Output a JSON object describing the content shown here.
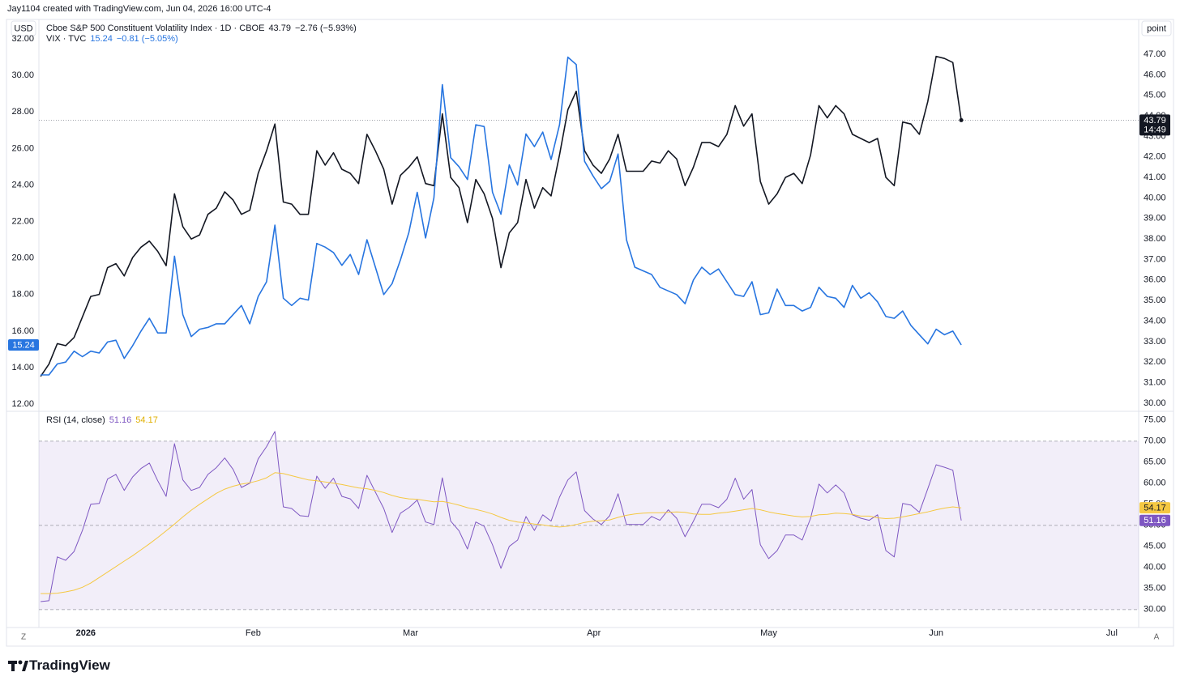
{
  "header": "Jay1104 created with TradingView.com, Jun 04, 2026 16:00 UTC-4",
  "currency": "USD",
  "scale_unit": "point",
  "logo": "TradingView",
  "buttons": [
    "Z",
    "A"
  ],
  "chart_data": [
    {
      "type": "line",
      "y_axis_side": "left",
      "countdown": "14:49",
      "xlim": [
        -0.2,
        131.2
      ],
      "xticks": [
        {
          "value": 5.4,
          "label": "2026"
        },
        {
          "value": 25.4,
          "label": "Feb"
        },
        {
          "value": 44.2,
          "label": "Mar"
        },
        {
          "value": 66.1,
          "label": "Apr"
        },
        {
          "value": 87.0,
          "label": "May"
        },
        {
          "value": 107.0,
          "label": "Jun"
        },
        {
          "value": 128.0,
          "label": "Jul"
        }
      ],
      "ylim": [
        11.65,
        32.27
      ],
      "yticks": [
        {
          "value": 12,
          "label": "12.00"
        },
        {
          "value": 14,
          "label": "14.00"
        },
        {
          "value": 16,
          "label": "16.00"
        },
        {
          "value": 18,
          "label": "18.00"
        },
        {
          "value": 20,
          "label": "20.00"
        },
        {
          "value": 22,
          "label": "22.00"
        },
        {
          "value": 24,
          "label": "24.00"
        },
        {
          "value": 26,
          "label": "26.00"
        },
        {
          "value": 28,
          "label": "28.00"
        },
        {
          "value": 30,
          "label": "30.00"
        },
        {
          "value": 32,
          "label": "32.00"
        }
      ],
      "y2lim": [
        29.64,
        47.99
      ],
      "y2ticks": [
        {
          "value": 30,
          "label": "30.00"
        },
        {
          "value": 31,
          "label": "31.00"
        },
        {
          "value": 32,
          "label": "32.00"
        },
        {
          "value": 33,
          "label": "33.00"
        },
        {
          "value": 34,
          "label": "34.00"
        },
        {
          "value": 35,
          "label": "35.00"
        },
        {
          "value": 36,
          "label": "36.00"
        },
        {
          "value": 37,
          "label": "37.00"
        },
        {
          "value": 38,
          "label": "38.00"
        },
        {
          "value": 39,
          "label": "39.00"
        },
        {
          "value": 40,
          "label": "40.00"
        },
        {
          "value": 41,
          "label": "41.00"
        },
        {
          "value": 42,
          "label": "42.00"
        },
        {
          "value": 43,
          "label": "43.00"
        },
        {
          "value": 44,
          "label": "44.00"
        },
        {
          "value": 45,
          "label": "45.00"
        },
        {
          "value": 46,
          "label": "46.00"
        },
        {
          "value": 47,
          "label": "47.00"
        }
      ],
      "series": [
        {
          "name": "Cboe S&P 500 Constituent Volatility Index · 1D · CBOE",
          "change": "−2.76 (−5.93%)",
          "color": "#131722",
          "axis": "y2",
          "price_line": true,
          "values": [
            31.3,
            31.9,
            32.9,
            32.8,
            33.2,
            34.2,
            35.2,
            35.3,
            36.6,
            36.8,
            36.2,
            37.1,
            37.6,
            37.9,
            37.4,
            36.7,
            40.2,
            38.6,
            38.0,
            38.2,
            39.2,
            39.5,
            40.3,
            39.9,
            39.2,
            39.4,
            41.2,
            42.3,
            43.6,
            39.8,
            39.7,
            39.2,
            39.2,
            42.3,
            41.6,
            42.2,
            41.4,
            41.2,
            40.7,
            43.1,
            42.3,
            41.4,
            39.7,
            41.1,
            41.5,
            42.0,
            40.7,
            40.6,
            44.1,
            41.0,
            40.5,
            38.8,
            40.9,
            40.2,
            39.0,
            36.6,
            38.3,
            38.8,
            40.9,
            39.5,
            40.5,
            40.1,
            42.1,
            44.3,
            45.2,
            42.3,
            41.6,
            41.2,
            41.9,
            43.1,
            41.3,
            41.3,
            41.3,
            41.8,
            41.7,
            42.3,
            41.9,
            40.6,
            41.5,
            42.7,
            42.7,
            42.5,
            43.1,
            44.5,
            43.5,
            44.1,
            40.8,
            39.7,
            40.2,
            41.0,
            41.2,
            40.7,
            42.1,
            44.5,
            43.9,
            44.5,
            44.1,
            43.1,
            42.9,
            42.7,
            42.9,
            41.0,
            40.6,
            43.7,
            43.6,
            43.1,
            44.7,
            46.9,
            46.8,
            46.6,
            43.79
          ]
        },
        {
          "name": "VIX · TVC",
          "change": "−0.81 (−5.05%)",
          "color": "#2775e0",
          "axis": "y",
          "values": [
            13.6,
            13.6,
            14.2,
            14.3,
            14.9,
            14.6,
            14.9,
            14.8,
            15.4,
            15.5,
            14.5,
            15.2,
            16.0,
            16.7,
            15.9,
            15.9,
            20.1,
            16.9,
            15.7,
            16.1,
            16.2,
            16.4,
            16.4,
            16.9,
            17.4,
            16.4,
            17.9,
            18.7,
            21.8,
            17.8,
            17.4,
            17.8,
            17.7,
            20.8,
            20.6,
            20.3,
            19.6,
            20.2,
            19.1,
            21.0,
            19.5,
            18.0,
            18.6,
            19.9,
            21.4,
            23.6,
            21.1,
            23.3,
            29.5,
            25.5,
            25.0,
            24.3,
            27.3,
            27.2,
            23.6,
            22.4,
            25.1,
            24.0,
            26.8,
            26.1,
            26.9,
            25.4,
            27.3,
            31.0,
            30.6,
            25.3,
            24.5,
            23.8,
            24.2,
            25.7,
            21.0,
            19.5,
            19.3,
            19.1,
            18.4,
            18.2,
            18.0,
            17.5,
            18.8,
            19.5,
            19.1,
            19.4,
            18.7,
            18.0,
            17.9,
            18.7,
            16.9,
            17.0,
            18.3,
            17.4,
            17.4,
            17.1,
            17.3,
            18.4,
            17.9,
            17.8,
            17.3,
            18.5,
            17.8,
            18.1,
            17.6,
            16.8,
            16.7,
            17.1,
            16.3,
            15.8,
            15.3,
            16.1,
            15.8,
            16.0,
            15.24
          ]
        }
      ]
    },
    {
      "type": "line",
      "y_axis_side": "right",
      "xlim": [
        -0.2,
        131.2
      ],
      "ylim": [
        26.7,
        76.7
      ],
      "yticks": [
        {
          "value": 30,
          "label": "30.00"
        },
        {
          "value": 35,
          "label": "35.00"
        },
        {
          "value": 40,
          "label": "40.00"
        },
        {
          "value": 45,
          "label": "45.00"
        },
        {
          "value": 50,
          "label": "50.00"
        },
        {
          "value": 55,
          "label": "55.00"
        },
        {
          "value": 60,
          "label": "60.00"
        },
        {
          "value": 65,
          "label": "65.00"
        },
        {
          "value": 70,
          "label": "70.00"
        },
        {
          "value": 75,
          "label": "75.00"
        }
      ],
      "bands": [
        30,
        50,
        70
      ],
      "band_color": "#7e57c2",
      "series": [
        {
          "name": "RSI (14, close)",
          "color": "#7e57c2",
          "axis": "y",
          "values": [
            31.9,
            32.1,
            42.5,
            41.7,
            43.8,
            48.8,
            55.0,
            55.2,
            61.0,
            62.1,
            58.3,
            61.5,
            63.5,
            64.8,
            60.6,
            56.9,
            69.4,
            60.8,
            58.3,
            59.0,
            62.1,
            63.7,
            66.0,
            63.3,
            59.0,
            60.0,
            65.8,
            68.7,
            72.3,
            54.4,
            54.0,
            52.3,
            52.1,
            61.7,
            58.8,
            61.2,
            56.9,
            56.3,
            54.0,
            61.9,
            57.9,
            54.0,
            48.3,
            52.9,
            54.2,
            56.0,
            50.8,
            50.2,
            61.3,
            51.0,
            48.7,
            44.4,
            50.8,
            49.8,
            45.4,
            39.8,
            45.0,
            46.5,
            52.1,
            48.8,
            52.5,
            51.0,
            56.7,
            60.8,
            62.7,
            53.5,
            51.5,
            50.2,
            52.3,
            57.5,
            50.2,
            50.2,
            50.2,
            52.1,
            51.2,
            53.7,
            51.7,
            47.3,
            51.0,
            55.0,
            55.0,
            54.2,
            56.2,
            61.2,
            56.2,
            58.5,
            45.4,
            42.1,
            44.0,
            47.7,
            47.7,
            46.5,
            51.7,
            59.8,
            57.7,
            59.6,
            57.7,
            52.5,
            51.7,
            51.2,
            52.5,
            44.0,
            42.5,
            55.2,
            54.8,
            53.1,
            58.7,
            64.4,
            63.8,
            63.1,
            51.16
          ]
        },
        {
          "color": "#f5c842",
          "axis": "y",
          "values": [
            33.8,
            33.8,
            33.9,
            34.2,
            34.6,
            35.3,
            36.3,
            37.6,
            38.9,
            40.2,
            41.5,
            42.8,
            44.2,
            45.6,
            47.1,
            48.7,
            50.3,
            52.0,
            53.6,
            55.0,
            56.3,
            57.6,
            58.6,
            59.3,
            59.8,
            60.1,
            60.6,
            61.3,
            62.5,
            62.3,
            61.8,
            61.3,
            60.8,
            60.6,
            60.3,
            60.0,
            59.7,
            59.3,
            58.9,
            58.7,
            58.3,
            57.8,
            57.1,
            56.6,
            56.3,
            56.2,
            55.9,
            55.6,
            55.7,
            55.3,
            54.8,
            54.2,
            53.8,
            53.3,
            52.7,
            51.9,
            51.2,
            50.8,
            50.6,
            50.3,
            50.1,
            49.8,
            49.6,
            49.8,
            50.2,
            50.7,
            51.0,
            51.1,
            51.3,
            51.9,
            52.4,
            52.7,
            52.9,
            53.0,
            53.0,
            53.1,
            53.2,
            53.1,
            52.7,
            52.6,
            52.6,
            52.9,
            53.1,
            53.4,
            53.7,
            54.0,
            53.7,
            53.2,
            52.8,
            52.5,
            52.2,
            52.0,
            52.1,
            52.5,
            52.6,
            52.9,
            52.8,
            52.6,
            52.2,
            52.2,
            51.8,
            51.6,
            51.7,
            52.0,
            52.4,
            52.8,
            53.2,
            53.7,
            54.1,
            54.4,
            54.17
          ]
        }
      ]
    }
  ]
}
